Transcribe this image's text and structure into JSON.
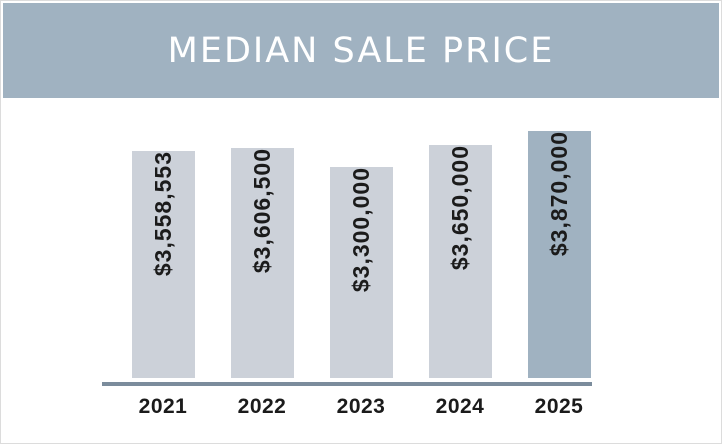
{
  "header": {
    "title": "MEDIAN SALE PRICE",
    "background_color": "#a0b2c1",
    "text_color": "#ffffff"
  },
  "chart_data": {
    "type": "bar",
    "title": "MEDIAN SALE PRICE",
    "categories": [
      "2021",
      "2022",
      "2023",
      "2024",
      "2025"
    ],
    "values": [
      3558553,
      3606500,
      3300000,
      3650000,
      3870000
    ],
    "value_labels": [
      "$3,558,553",
      "$3,606,500",
      "$3,300,000",
      "$3,650,000",
      "$3,870,000"
    ],
    "bar_colors": [
      "#ccd1d9",
      "#ccd1d9",
      "#ccd1d9",
      "#ccd1d9",
      "#a0b2c1"
    ],
    "highlight_index": 4,
    "xlabel": "",
    "ylabel": "",
    "ylim": [
      0,
      3870000
    ],
    "grid": false,
    "legend": false,
    "value_label_position": "inside-top-rotated-90",
    "axis_line_color": "#7b8c9c",
    "value_text_color": "#1b1b1b"
  }
}
